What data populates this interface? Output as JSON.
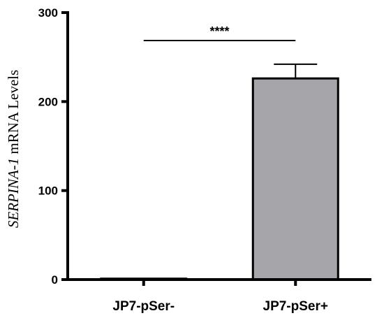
{
  "chart_data": {
    "type": "bar",
    "categories": [
      "JP7-pSer-",
      "JP7-pSer+"
    ],
    "values": [
      1,
      226
    ],
    "error_upper": [
      0,
      16
    ],
    "ylabel_italic": "SERPINA-1",
    "ylabel_rest": " mRNA Levels",
    "ylim": [
      0,
      300
    ],
    "yticks": [
      "0",
      "100",
      "200",
      "300"
    ],
    "significance": {
      "label": "****",
      "between": [
        0,
        1
      ]
    },
    "colors": {
      "bar_fill": "#a6a6aa",
      "axis": "#000000"
    },
    "grid": false
  }
}
